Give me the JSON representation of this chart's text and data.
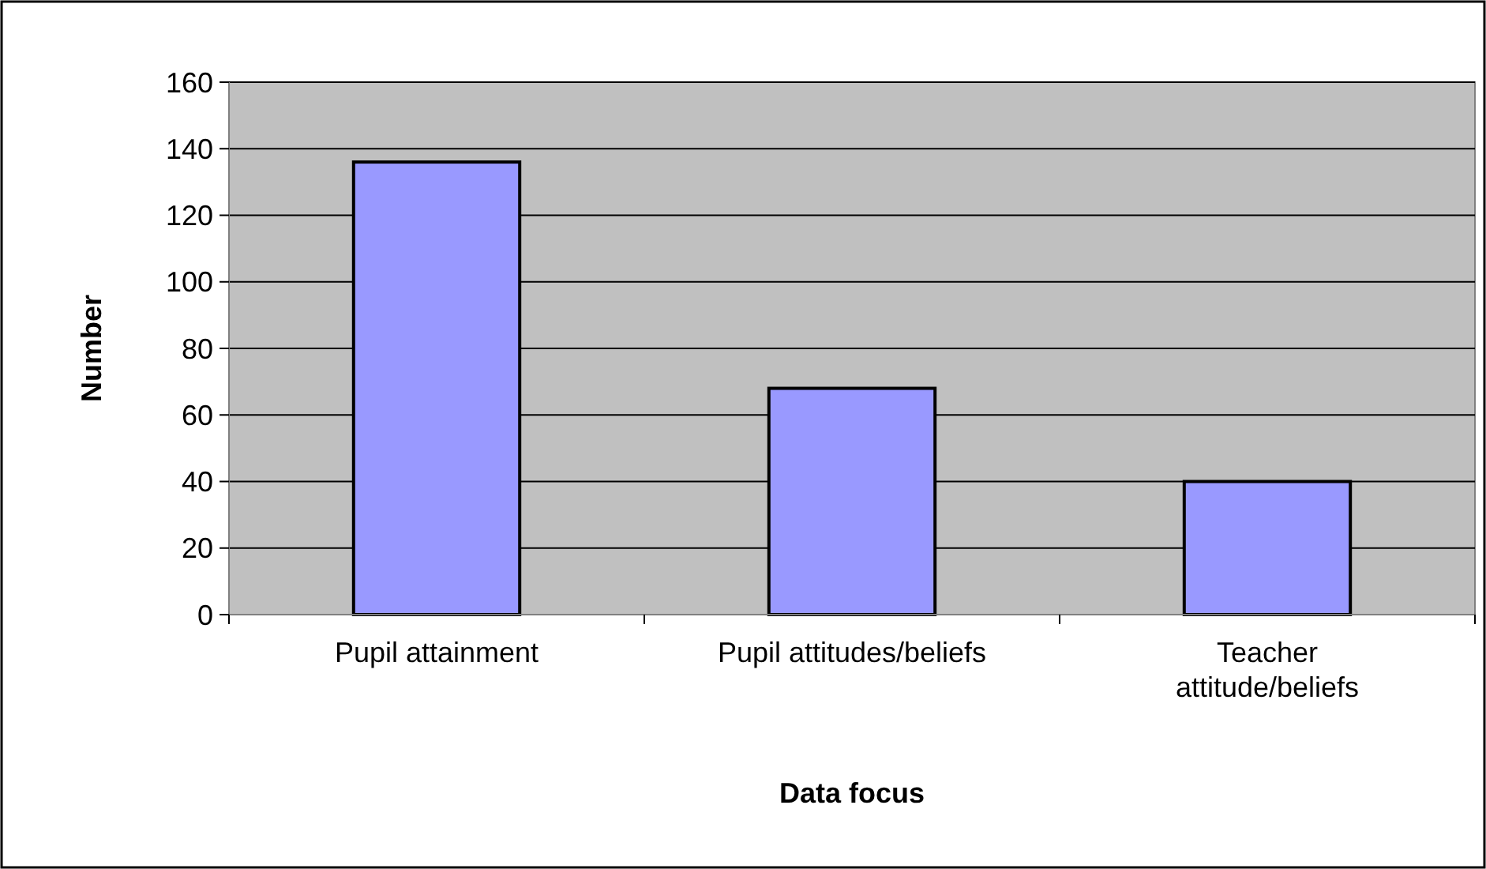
{
  "chart_data": {
    "type": "bar",
    "xlabel": "Data focus",
    "ylabel": "Number",
    "categories": [
      "Pupil attainment",
      "Pupil attitudes/beliefs",
      "Teacher attitude/beliefs"
    ],
    "values": [
      136,
      68,
      40
    ],
    "color": "#9999ff",
    "ylim": [
      0,
      160
    ],
    "yticks": [
      0,
      20,
      40,
      60,
      80,
      100,
      120,
      140,
      160
    ],
    "grid": "y"
  }
}
